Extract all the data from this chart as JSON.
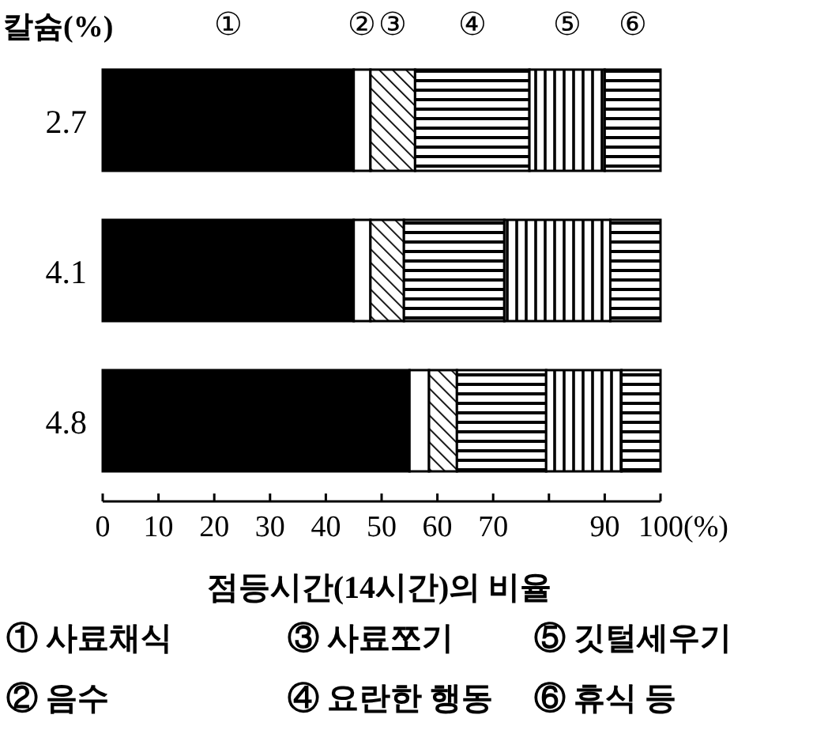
{
  "chart_data": {
    "type": "bar",
    "orientation": "horizontal",
    "stacked": true,
    "ylabel": "칼슘(%)",
    "xlabel": "점등시간(14시간)의 비율",
    "categories": [
      "2.7",
      "4.1",
      "4.8"
    ],
    "series": [
      {
        "name": "①",
        "color": "#000000",
        "values": [
          45,
          45,
          55
        ]
      },
      {
        "name": "②",
        "color": "#000000",
        "values": [
          3,
          3,
          3.5
        ]
      },
      {
        "name": "③",
        "color": "#000000",
        "values": [
          8,
          6,
          5
        ]
      },
      {
        "name": "④",
        "color": "#000000",
        "values": [
          20.5,
          18,
          16
        ]
      },
      {
        "name": "⑤",
        "color": "#000000",
        "values": [
          13.5,
          19,
          13.5
        ]
      },
      {
        "name": "⑥",
        "color": "#000000",
        "values": [
          10,
          9,
          7
        ]
      }
    ],
    "xlim": [
      0,
      100
    ],
    "xticks": [
      0,
      10,
      20,
      30,
      40,
      50,
      60,
      70,
      {
        "value": 80,
        "label": null
      },
      90,
      {
        "value": 100,
        "label": "100(%)"
      }
    ],
    "annotations": [
      "① 사료채식",
      "② 음수",
      "③ 사료쪼기",
      "④ 요란한 행동",
      "⑤ 깃털세우기",
      "⑥ 휴식 등"
    ]
  }
}
